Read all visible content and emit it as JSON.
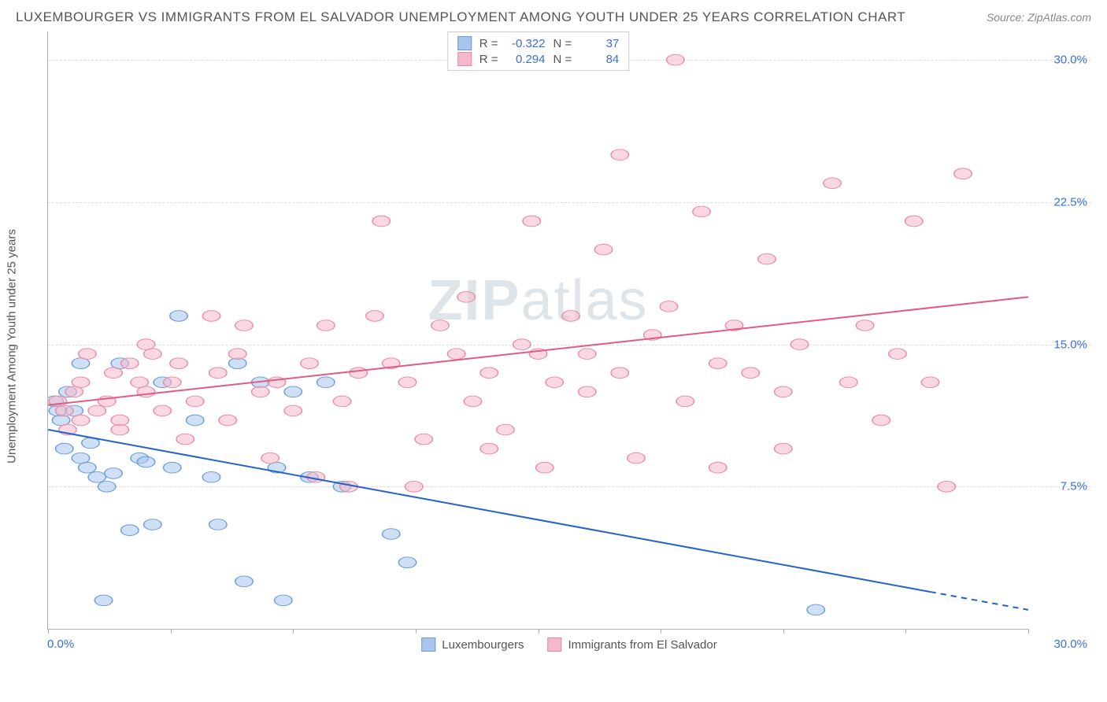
{
  "header": {
    "title": "LUXEMBOURGER VS IMMIGRANTS FROM EL SALVADOR UNEMPLOYMENT AMONG YOUTH UNDER 25 YEARS CORRELATION CHART",
    "source_label": "Source:",
    "source_value": "ZipAtlas.com"
  },
  "chart": {
    "type": "scatter",
    "y_axis_label": "Unemployment Among Youth under 25 years",
    "x_range": [
      0,
      30
    ],
    "y_range": [
      0,
      31.5
    ],
    "x_ticks": [
      0,
      3.75,
      7.5,
      11.25,
      15,
      18.75,
      22.5,
      26.25,
      30
    ],
    "y_gridlines": [
      7.5,
      15.0,
      22.5,
      30.0
    ],
    "y_tick_labels": [
      "7.5%",
      "15.0%",
      "22.5%",
      "30.0%"
    ],
    "x_label_min": "0.0%",
    "x_label_max": "30.0%",
    "background_color": "#ffffff",
    "grid_color": "#dddddd",
    "axis_color": "#b0b0b0",
    "tick_label_color": "#3b6fd4",
    "marker_radius": 9,
    "marker_opacity": 0.55,
    "line_width": 2,
    "series": [
      {
        "name": "Luxembourgers",
        "color_fill": "#a8c5ec",
        "color_stroke": "#6b9bd8",
        "line_color": "#2663c9",
        "R": "-0.322",
        "N": "37",
        "trend": {
          "x1": 0,
          "y1": 10.5,
          "x2": 30,
          "y2": 1.0,
          "dash_from_x": 27
        },
        "points": [
          [
            0.2,
            12.0
          ],
          [
            0.3,
            11.5
          ],
          [
            0.4,
            11.0
          ],
          [
            0.6,
            12.5
          ],
          [
            0.8,
            11.5
          ],
          [
            1.0,
            9.0
          ],
          [
            1.2,
            8.5
          ],
          [
            1.3,
            9.8
          ],
          [
            1.5,
            8.0
          ],
          [
            1.8,
            7.5
          ],
          [
            2.0,
            8.2
          ],
          [
            2.2,
            14.0
          ],
          [
            2.5,
            5.2
          ],
          [
            2.8,
            9.0
          ],
          [
            3.0,
            8.8
          ],
          [
            3.2,
            5.5
          ],
          [
            3.5,
            13.0
          ],
          [
            3.8,
            8.5
          ],
          [
            4.0,
            16.5
          ],
          [
            4.5,
            11.0
          ],
          [
            5.0,
            8.0
          ],
          [
            5.2,
            5.5
          ],
          [
            5.8,
            14.0
          ],
          [
            6.0,
            2.5
          ],
          [
            6.5,
            13.0
          ],
          [
            7.0,
            8.5
          ],
          [
            7.5,
            12.5
          ],
          [
            8.0,
            8.0
          ],
          [
            8.5,
            13.0
          ],
          [
            9.0,
            7.5
          ],
          [
            10.5,
            5.0
          ],
          [
            11.0,
            3.5
          ],
          [
            7.2,
            1.5
          ],
          [
            1.7,
            1.5
          ],
          [
            1.0,
            14.0
          ],
          [
            0.5,
            9.5
          ],
          [
            23.5,
            1.0
          ]
        ]
      },
      {
        "name": "Immigants from El Salvador",
        "legend_label": "Immigrants from El Salvador",
        "color_fill": "#f5b8c8",
        "color_stroke": "#e88aa5",
        "line_color": "#e15b84",
        "R": "0.294",
        "N": "84",
        "trend": {
          "x1": 0,
          "y1": 11.8,
          "x2": 30,
          "y2": 17.5
        },
        "points": [
          [
            0.3,
            12.0
          ],
          [
            0.5,
            11.5
          ],
          [
            0.8,
            12.5
          ],
          [
            1.0,
            11.0
          ],
          [
            1.2,
            14.5
          ],
          [
            1.5,
            11.5
          ],
          [
            1.8,
            12.0
          ],
          [
            2.0,
            13.5
          ],
          [
            2.2,
            11.0
          ],
          [
            2.5,
            14.0
          ],
          [
            2.8,
            13.0
          ],
          [
            3.0,
            12.5
          ],
          [
            3.2,
            14.5
          ],
          [
            3.5,
            11.5
          ],
          [
            3.8,
            13.0
          ],
          [
            4.0,
            14.0
          ],
          [
            4.5,
            12.0
          ],
          [
            5.0,
            16.5
          ],
          [
            5.2,
            13.5
          ],
          [
            5.5,
            11.0
          ],
          [
            5.8,
            14.5
          ],
          [
            6.0,
            16.0
          ],
          [
            6.5,
            12.5
          ],
          [
            7.0,
            13.0
          ],
          [
            7.5,
            11.5
          ],
          [
            8.0,
            14.0
          ],
          [
            8.5,
            16.0
          ],
          [
            9.0,
            12.0
          ],
          [
            9.5,
            13.5
          ],
          [
            10.0,
            16.5
          ],
          [
            10.2,
            21.5
          ],
          [
            10.5,
            14.0
          ],
          [
            11.0,
            13.0
          ],
          [
            11.5,
            10.0
          ],
          [
            12.0,
            16.0
          ],
          [
            12.5,
            14.5
          ],
          [
            13.0,
            12.0
          ],
          [
            13.5,
            13.5
          ],
          [
            14.0,
            10.5
          ],
          [
            14.5,
            15.0
          ],
          [
            14.8,
            21.5
          ],
          [
            15.0,
            14.5
          ],
          [
            15.5,
            13.0
          ],
          [
            16.0,
            16.5
          ],
          [
            16.5,
            12.5
          ],
          [
            17.0,
            20.0
          ],
          [
            17.5,
            13.5
          ],
          [
            18.0,
            9.0
          ],
          [
            18.5,
            15.5
          ],
          [
            19.0,
            17.0
          ],
          [
            19.2,
            30.0
          ],
          [
            19.5,
            12.0
          ],
          [
            20.0,
            22.0
          ],
          [
            20.5,
            14.0
          ],
          [
            21.0,
            16.0
          ],
          [
            21.5,
            13.5
          ],
          [
            22.0,
            19.5
          ],
          [
            22.5,
            12.5
          ],
          [
            23.0,
            15.0
          ],
          [
            24.0,
            23.5
          ],
          [
            24.5,
            13.0
          ],
          [
            25.0,
            16.0
          ],
          [
            25.5,
            11.0
          ],
          [
            26.0,
            14.5
          ],
          [
            26.5,
            21.5
          ],
          [
            27.0,
            13.0
          ],
          [
            27.5,
            7.5
          ],
          [
            28.0,
            24.0
          ],
          [
            9.2,
            7.5
          ],
          [
            11.2,
            7.5
          ],
          [
            6.8,
            9.0
          ],
          [
            4.2,
            10.0
          ],
          [
            3.0,
            15.0
          ],
          [
            2.2,
            10.5
          ],
          [
            1.0,
            13.0
          ],
          [
            0.6,
            10.5
          ],
          [
            17.5,
            25.0
          ],
          [
            13.5,
            9.5
          ],
          [
            8.2,
            8.0
          ],
          [
            15.2,
            8.5
          ],
          [
            20.5,
            8.5
          ],
          [
            22.5,
            9.5
          ],
          [
            16.5,
            14.5
          ],
          [
            12.8,
            17.5
          ]
        ]
      }
    ]
  },
  "stats_box": {
    "rows": [
      {
        "swatch_fill": "#a8c5ec",
        "swatch_stroke": "#6b9bd8",
        "R_label": "R =",
        "R_val": "-0.322",
        "N_label": "N =",
        "N_val": "37"
      },
      {
        "swatch_fill": "#f5b8c8",
        "swatch_stroke": "#e88aa5",
        "R_label": "R =",
        "R_val": "0.294",
        "N_label": "N =",
        "N_val": "84"
      }
    ]
  },
  "bottom_legend": {
    "items": [
      {
        "swatch_fill": "#a8c5ec",
        "swatch_stroke": "#6b9bd8",
        "label": "Luxembourgers"
      },
      {
        "swatch_fill": "#f5b8c8",
        "swatch_stroke": "#e88aa5",
        "label": "Immigrants from El Salvador"
      }
    ]
  },
  "watermark": {
    "zip": "ZIP",
    "atlas": "atlas"
  }
}
